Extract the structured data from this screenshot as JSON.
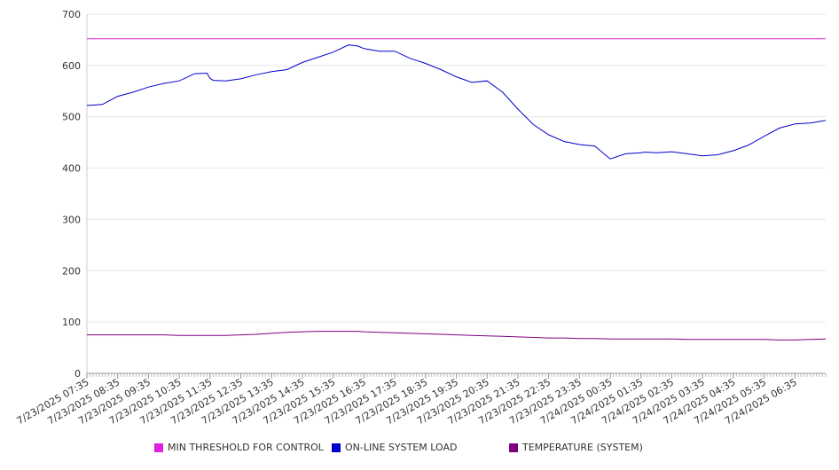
{
  "chart_data": {
    "type": "line",
    "title": "",
    "xlabel": "",
    "ylabel": "",
    "ylim": [
      0,
      700
    ],
    "y_ticks": [
      0,
      100,
      200,
      300,
      400,
      500,
      600,
      700
    ],
    "x_tick_labels": [
      "7/23/2025 07:35",
      "7/23/2025 08:35",
      "7/23/2025 09:35",
      "7/23/2025 10:35",
      "7/23/2025 11:35",
      "7/23/2025 12:35",
      "7/23/2025 13:35",
      "7/23/2025 14:35",
      "7/23/2025 15:35",
      "7/23/2025 16:35",
      "7/23/2025 17:35",
      "7/23/2025 18:35",
      "7/23/2025 19:35",
      "7/23/2025 20:35",
      "7/23/2025 21:35",
      "7/23/2025 22:35",
      "7/23/2025 23:35",
      "7/24/2025 00:35",
      "7/24/2025 01:35",
      "7/24/2025 02:35",
      "7/24/2025 03:35",
      "7/24/2025 04:35",
      "7/24/2025 05:35",
      "7/24/2025 06:35"
    ],
    "grid": true,
    "legend_position": "bottom",
    "x": [
      0,
      0.5,
      1,
      1.5,
      2,
      2.5,
      3,
      3.5,
      3.9,
      4,
      4.1,
      4.5,
      5,
      5.5,
      6,
      6.5,
      7,
      7.5,
      8,
      8.5,
      8.8,
      9,
      9.5,
      10,
      10.5,
      11,
      11.5,
      12,
      12.5,
      13,
      13.5,
      14,
      14.5,
      15,
      15.5,
      16,
      16.5,
      17,
      17.5,
      18,
      18.1,
      18.2,
      18.5,
      19,
      19.5,
      20,
      20.5,
      21,
      21.5,
      22,
      22.5,
      23,
      23.5,
      24
    ],
    "series": [
      {
        "name": "MIN THRESHOLD FOR CONTROL",
        "color": "#e020e0",
        "values": [
          652,
          652,
          652,
          652,
          652,
          652,
          652,
          652,
          652,
          652,
          652,
          652,
          652,
          652,
          652,
          652,
          652,
          652,
          652,
          652,
          652,
          652,
          652,
          652,
          652,
          652,
          652,
          652,
          652,
          652,
          652,
          652,
          652,
          652,
          652,
          652,
          652,
          652,
          652,
          652,
          652,
          652,
          652,
          652,
          652,
          652,
          652,
          652,
          652,
          652,
          652,
          652,
          652,
          652
        ]
      },
      {
        "name": "ON-LINE SYSTEM LOAD",
        "color": "#0000cc",
        "values": [
          522,
          524,
          540,
          548,
          558,
          565,
          570,
          584,
          585,
          575,
          571,
          570,
          574,
          582,
          588,
          592,
          606,
          616,
          626,
          640,
          638,
          633,
          628,
          628,
          614,
          604,
          592,
          578,
          567,
          570,
          548,
          515,
          485,
          465,
          452,
          446,
          443,
          418,
          428,
          430,
          431,
          431,
          430,
          432,
          428,
          424,
          426,
          434,
          445,
          462,
          478,
          486,
          488,
          493
        ]
      },
      {
        "name": "TEMPERATURE (SYSTEM)",
        "color": "#800080",
        "values": [
          75,
          75,
          75,
          75,
          75,
          75,
          74,
          74,
          74,
          74,
          74,
          74,
          75,
          76,
          78,
          80,
          81,
          82,
          82,
          82,
          82,
          81,
          80,
          79,
          78,
          77,
          76,
          75,
          74,
          73,
          72,
          71,
          70,
          69,
          69,
          68,
          68,
          67,
          67,
          67,
          67,
          67,
          67,
          67,
          66,
          66,
          66,
          66,
          66,
          66,
          65,
          65,
          66,
          67
        ]
      }
    ]
  }
}
